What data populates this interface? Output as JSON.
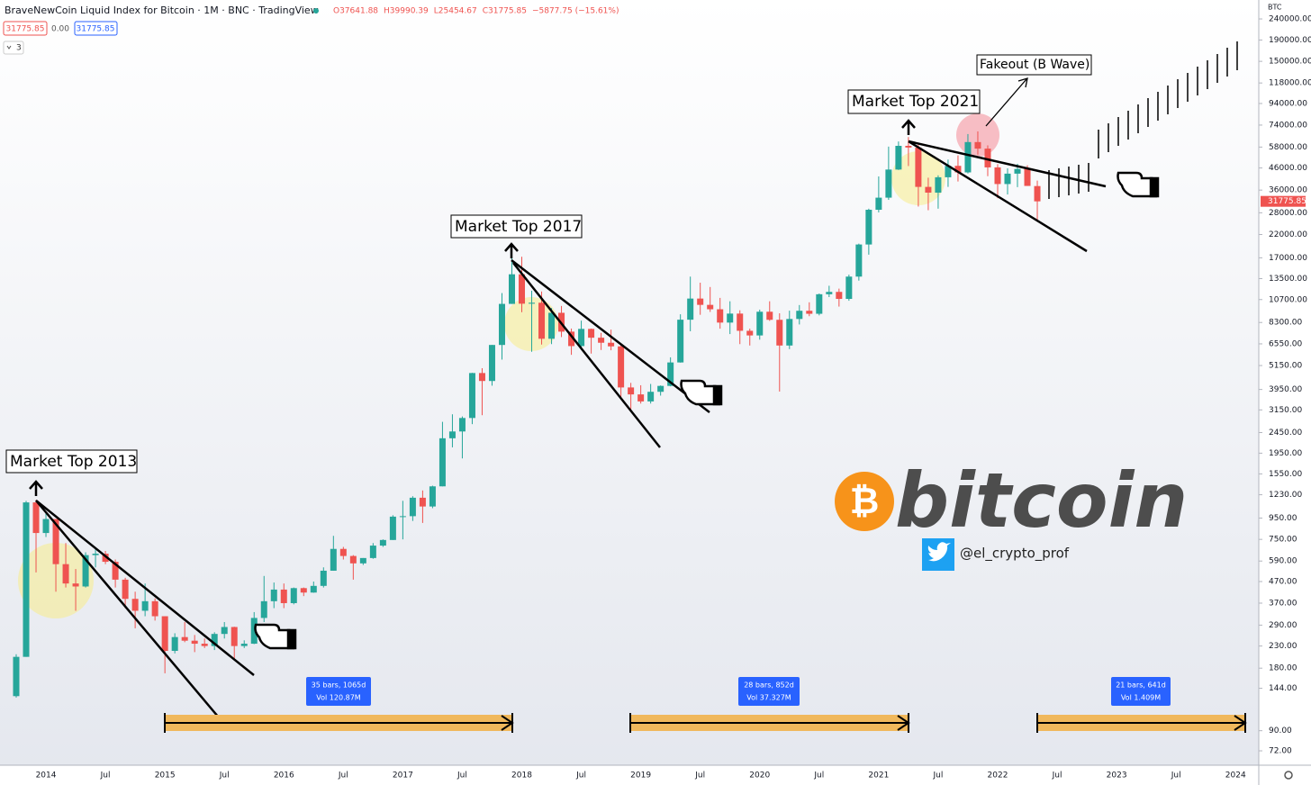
{
  "chart_data": {
    "type": "candlestick",
    "title": "BraveNewCoin Liquid Index for Bitcoin · 1M · BNC · TradingView",
    "ohlc_text": [
      "O37641.88",
      "H39990.39",
      "L25454.67",
      "C31775.85",
      "−5877.75 (−15.61%)"
    ],
    "change_text": "0.00",
    "interval_text": "3",
    "currency": "BTC",
    "log_scale": true,
    "up_color": "#26a69a",
    "down_color": "#ef5350",
    "categories": [
      null,
      null,
      null,
      "2014",
      null,
      null,
      null,
      null,
      null,
      "Jul",
      null,
      null,
      null,
      null,
      null,
      "2015",
      null,
      null,
      null,
      null,
      null,
      "Jul",
      null,
      null,
      null,
      null,
      null,
      "2016",
      null,
      null,
      null,
      null,
      null,
      "Jul",
      null,
      null,
      null,
      null,
      null,
      "2017",
      null,
      null,
      null,
      null,
      null,
      "Jul",
      null,
      null,
      null,
      null,
      null,
      "2018",
      null,
      null,
      null,
      null,
      null,
      "Jul",
      null,
      null,
      null,
      null,
      null,
      "2019",
      null,
      null,
      null,
      null,
      null,
      "Jul",
      null,
      null,
      null,
      null,
      null,
      "2020",
      null,
      null,
      null,
      null,
      null,
      "Jul",
      null,
      null,
      null,
      null,
      null,
      "2021",
      null,
      null,
      null,
      null,
      null,
      "Jul",
      null,
      null,
      null,
      null,
      null,
      "2022",
      null,
      null,
      null,
      null,
      null,
      "Jul",
      null,
      null,
      null,
      null,
      null,
      "2023",
      null,
      null,
      null,
      null,
      null,
      "Jul",
      null,
      null,
      null,
      null,
      null,
      "2024"
    ],
    "open": [
      132,
      204,
      1130,
      805,
      940,
      570,
      460,
      445,
      630,
      640,
      585,
      480,
      388,
      340,
      378,
      320,
      218,
      254,
      244,
      236,
      230,
      263,
      284,
      230,
      236,
      314,
      378,
      430,
      370,
      437,
      416,
      448,
      530,
      675,
      624,
      575,
      610,
      700,
      745,
      965,
      970,
      1190,
      1080,
      1350,
      2300,
      2480,
      2880,
      4740,
      4340,
      6470,
      10200,
      14160,
      10220,
      10330,
      6930,
      9240,
      7500,
      6390,
      7730,
      7010,
      6630,
      6370,
      4040,
      3740,
      3460,
      3850,
      4110,
      5330,
      8560,
      10820,
      10090,
      9610,
      8290,
      9160,
      7570,
      7190,
      9350,
      8550,
      6430,
      8630,
      9450,
      9140,
      11350,
      11650,
      10780,
      13800,
      19700,
      28950,
      33100,
      45200,
      58800,
      57700,
      37300,
      35000,
      41500,
      47100,
      43800,
      61300,
      57000,
      46300,
      38500,
      43200,
      45500,
      37641.88,
      null,
      null,
      null,
      null,
      null,
      null,
      null,
      null,
      null,
      null,
      null,
      null,
      null,
      null,
      null,
      null,
      null,
      null,
      null,
      null
    ],
    "high": [
      210,
      1150,
      1160,
      1020,
      940,
      720,
      540,
      650,
      680,
      660,
      600,
      490,
      420,
      460,
      390,
      320,
      265,
      300,
      260,
      250,
      268,
      300,
      285,
      245,
      335,
      500,
      465,
      460,
      440,
      440,
      470,
      550,
      780,
      690,
      630,
      610,
      720,
      750,
      980,
      1150,
      1210,
      1290,
      1360,
      2760,
      3000,
      2930,
      4750,
      5000,
      6470,
      11500,
      19800,
      17200,
      11800,
      11700,
      9750,
      9970,
      7760,
      8470,
      7760,
      7400,
      7670,
      6580,
      4250,
      4140,
      4200,
      4130,
      5640,
      9090,
      13800,
      12900,
      12300,
      10900,
      10500,
      9500,
      7750,
      9570,
      10500,
      9190,
      9460,
      10070,
      10380,
      11440,
      12470,
      12080,
      14100,
      19890,
      29300,
      41900,
      58300,
      61700,
      64800,
      59500,
      41300,
      42400,
      50500,
      52900,
      67000,
      69000,
      59100,
      48000,
      45800,
      48200,
      47400,
      39990.39,
      null,
      null,
      null,
      null,
      null,
      null,
      null,
      null,
      null,
      null,
      null,
      null,
      null,
      null,
      null,
      null,
      null,
      null,
      null,
      null
    ],
    "low": [
      130,
      204,
      520,
      770,
      420,
      440,
      340,
      440,
      550,
      570,
      440,
      350,
      280,
      320,
      305,
      170,
      212,
      240,
      215,
      225,
      220,
      250,
      200,
      225,
      235,
      300,
      350,
      350,
      365,
      400,
      415,
      440,
      530,
      600,
      480,
      565,
      605,
      690,
      745,
      750,
      920,
      900,
      1060,
      1350,
      2080,
      1840,
      2690,
      2970,
      4120,
      5500,
      10200,
      9300,
      6000,
      6500,
      6530,
      7060,
      5800,
      6120,
      5880,
      6120,
      6100,
      3560,
      3170,
      3380,
      3380,
      3690,
      4090,
      5320,
      7530,
      9040,
      9330,
      7750,
      7300,
      6530,
      6430,
      6860,
      8450,
      3860,
      6180,
      8120,
      8900,
      8980,
      11000,
      9900,
      10560,
      13200,
      17600,
      28120,
      32300,
      45000,
      47000,
      30000,
      28800,
      29300,
      37300,
      39600,
      43300,
      53300,
      42000,
      32900,
      34300,
      37200,
      37700,
      25454.67,
      null,
      null,
      null,
      null,
      null,
      null,
      null,
      null,
      null,
      null,
      null,
      null,
      null,
      null,
      null,
      null,
      null,
      null,
      null,
      null
    ],
    "close": [
      204,
      1130,
      805,
      940,
      570,
      460,
      445,
      630,
      640,
      585,
      480,
      388,
      340,
      378,
      320,
      218,
      254,
      244,
      236,
      230,
      263,
      284,
      230,
      236,
      314,
      378,
      430,
      370,
      437,
      416,
      448,
      530,
      675,
      624,
      575,
      610,
      700,
      745,
      965,
      970,
      1190,
      1080,
      1350,
      2300,
      2480,
      2880,
      4740,
      4340,
      6470,
      10200,
      14160,
      10220,
      10330,
      6930,
      9240,
      7500,
      6390,
      7730,
      7010,
      6630,
      6370,
      4040,
      3740,
      3460,
      3850,
      4110,
      5330,
      8560,
      10820,
      10090,
      9610,
      8290,
      9160,
      7570,
      7190,
      9350,
      8550,
      6430,
      8630,
      9450,
      9140,
      11350,
      11650,
      10780,
      13800,
      19700,
      28950,
      33100,
      45200,
      58800,
      57700,
      37300,
      35000,
      41500,
      47100,
      43800,
      61300,
      57000,
      46300,
      38500,
      43200,
      45500,
      37700,
      31775.85,
      null,
      null,
      null,
      null,
      null,
      null,
      null,
      null,
      null,
      null,
      null,
      null,
      null,
      null,
      null,
      null,
      null,
      null,
      null,
      null
    ],
    "ylim": [
      61.4,
      296000
    ],
    "yticks": [
      {
        "value": 240000,
        "label": "240000.00"
      },
      {
        "value": 190000,
        "label": "190000.00"
      },
      {
        "value": 150000,
        "label": "150000.00"
      },
      {
        "value": 118000,
        "label": "118000.00"
      },
      {
        "value": 94000,
        "label": "94000.00"
      },
      {
        "value": 74000,
        "label": "74000.00"
      },
      {
        "value": 58000,
        "label": "58000.00"
      },
      {
        "value": 46000,
        "label": "46000.00"
      },
      {
        "value": 36000,
        "label": "36000.00"
      },
      {
        "value": 28000,
        "label": "28000.00"
      },
      {
        "value": 22000,
        "label": "22000.00"
      },
      {
        "value": 17000,
        "label": "17000.00"
      },
      {
        "value": 13500,
        "label": "13500.00"
      },
      {
        "value": 10700,
        "label": "10700.00"
      },
      {
        "value": 8300,
        "label": "8300.00"
      },
      {
        "value": 6550,
        "label": "6550.00"
      },
      {
        "value": 5150,
        "label": "5150.00"
      },
      {
        "value": 3950,
        "label": "3950.00"
      },
      {
        "value": 3150,
        "label": "3150.00"
      },
      {
        "value": 2450,
        "label": "2450.00"
      },
      {
        "value": 1950,
        "label": "1950.00"
      },
      {
        "value": 1550,
        "label": "1550.00"
      },
      {
        "value": 1230,
        "label": "1230.00"
      },
      {
        "value": 950,
        "label": "950.00"
      },
      {
        "value": 750,
        "label": "750.00"
      },
      {
        "value": 590,
        "label": "590.00"
      },
      {
        "value": 470,
        "label": "470.00"
      },
      {
        "value": 370,
        "label": "370.00"
      },
      {
        "value": 290,
        "label": "290.00"
      },
      {
        "value": 230,
        "label": "230.00"
      },
      {
        "value": 180,
        "label": "180.00"
      },
      {
        "value": 144,
        "label": "144.00"
      },
      {
        "value": 90,
        "label": "90.00"
      },
      {
        "value": 72,
        "label": "72.00"
      }
    ],
    "annotations": [
      "Market Top 2013",
      "Market Top 2017",
      "Market Top 2021",
      "Fakeout (B Wave)"
    ],
    "measures": [
      {
        "bars": "35 bars, 1065d",
        "vol": "Vol 120.87M"
      },
      {
        "bars": "28 bars, 852d",
        "vol": "Vol 37.327M"
      },
      {
        "bars": "21 bars, 641d",
        "vol": "Vol 1.409M"
      }
    ],
    "logo_symbol": "₿",
    "logo_text": "bitcoin",
    "handle": "@el_crypto_prof"
  }
}
